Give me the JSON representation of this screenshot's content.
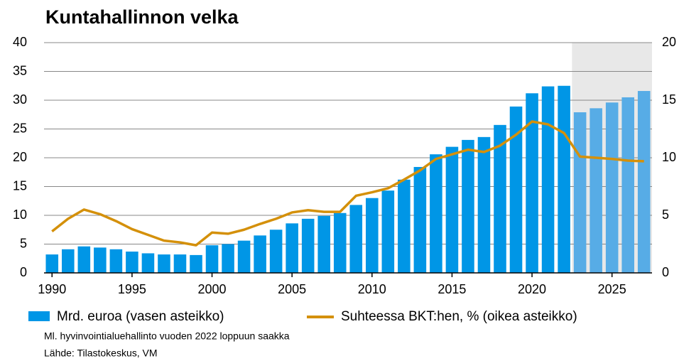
{
  "chart_data": {
    "type": "bar_line",
    "title": "Kuntahallinnon velka",
    "x": [
      1990,
      1991,
      1992,
      1993,
      1994,
      1995,
      1996,
      1997,
      1998,
      1999,
      2000,
      2001,
      2002,
      2003,
      2004,
      2005,
      2006,
      2007,
      2008,
      2009,
      2010,
      2011,
      2012,
      2013,
      2014,
      2015,
      2016,
      2017,
      2018,
      2019,
      2020,
      2021,
      2022,
      2023,
      2024,
      2025,
      2026,
      2027
    ],
    "xlim": [
      1989.5,
      2027.5
    ],
    "xticks": [
      1990,
      1995,
      2000,
      2005,
      2010,
      2015,
      2020,
      2025
    ],
    "ylim": [
      0,
      40
    ],
    "yticks": [
      0,
      5,
      10,
      15,
      20,
      25,
      30,
      35,
      40
    ],
    "y2lim": [
      0,
      20
    ],
    "y2ticks": [
      0,
      5,
      10,
      15,
      20
    ],
    "grid": true,
    "forecast_start": 2023,
    "forecast_color": "#e8e8e8",
    "series": [
      {
        "name": "Mrd. euroa (vasen asteikko)",
        "color": "#0096e6",
        "forecast_color": "#57ace6",
        "values": [
          3.2,
          4.1,
          4.6,
          4.4,
          4.1,
          3.7,
          3.4,
          3.2,
          3.2,
          3.1,
          4.8,
          5.0,
          5.6,
          6.5,
          7.5,
          8.6,
          9.4,
          9.9,
          10.4,
          11.8,
          13.0,
          14.3,
          16.2,
          18.4,
          20.6,
          21.9,
          23.1,
          23.6,
          25.7,
          28.9,
          31.2,
          32.4,
          32.5,
          27.9,
          28.6,
          29.6,
          30.5,
          31.6
        ]
      },
      {
        "name": "Suhteessa BKT:hen, % (oikea asteikko)",
        "color": "#d4900a",
        "axis": "y2",
        "values": [
          3.6,
          4.7,
          5.5,
          5.1,
          4.5,
          3.8,
          3.3,
          2.8,
          2.65,
          2.4,
          3.5,
          3.4,
          3.75,
          4.25,
          4.7,
          5.25,
          5.45,
          5.3,
          5.3,
          6.7,
          7.0,
          7.35,
          8.1,
          8.9,
          9.9,
          10.3,
          10.7,
          10.5,
          11.05,
          12.0,
          13.15,
          12.9,
          12.15,
          10.1,
          10.0,
          9.9,
          9.75,
          9.7
        ]
      }
    ],
    "notes": [
      "Ml. hyvinvointialuehallinto vuoden 2022 loppuun saakka",
      "Lähde: Tilastokeskus, VM"
    ]
  }
}
